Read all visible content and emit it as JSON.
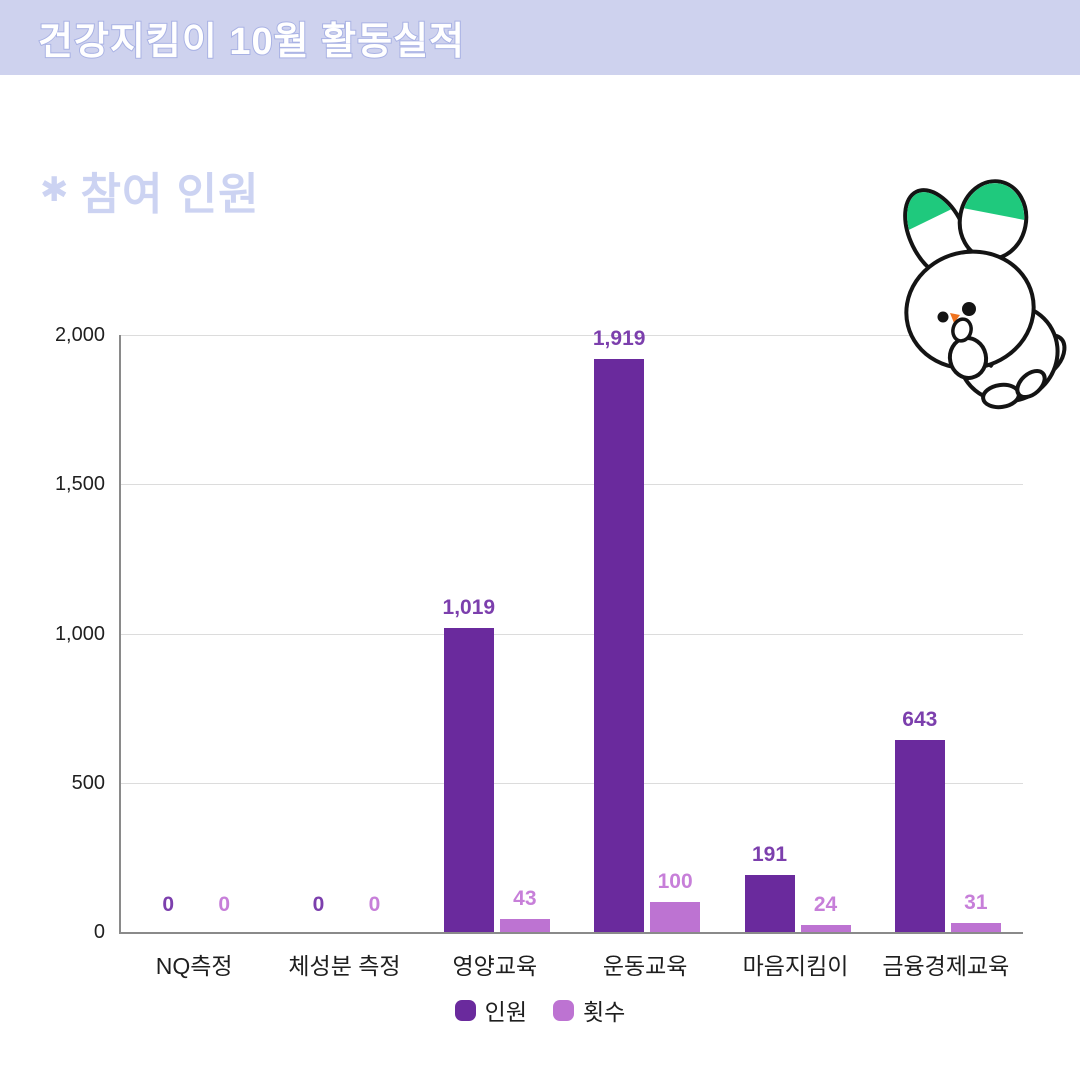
{
  "header": {
    "title": "건강지킴이 10월 활동실적"
  },
  "section": {
    "marker": "✱",
    "title": "참여 인원"
  },
  "icons": {
    "mascot": "rabbit-mascot",
    "mascot_ear_color": "#1fc97d",
    "mascot_nose_color": "#f0731f"
  },
  "theme": {
    "header_bg": "#ced2ee",
    "header_text": "#ffffff",
    "header_text_outline": "#a9b2e4",
    "section_title_color": "#ccd3f2"
  },
  "chart_data": {
    "type": "bar",
    "title": "참여 인원",
    "categories": [
      "NQ측정",
      "체성분 측정",
      "영양교육",
      "운동교육",
      "마음지킴이",
      "금융경제교육"
    ],
    "series": [
      {
        "name": "인원",
        "color": "#6a2a9d",
        "label_color": "#7c3fad",
        "values": [
          0,
          0,
          1019,
          1919,
          191,
          643
        ]
      },
      {
        "name": "횟수",
        "color": "#bd73d2",
        "label_color": "#c77fd9",
        "values": [
          0,
          0,
          43,
          100,
          24,
          31
        ]
      }
    ],
    "ylim": [
      0,
      2000
    ],
    "yticks": [
      0,
      500,
      1000,
      1500,
      2000
    ],
    "grid": true,
    "legend_position": "bottom",
    "colors": {
      "axis": "#8a8a8a",
      "gridline": "#dcdcdc",
      "tick_label": "#1f1f1f",
      "category_label": "#1f1f1f",
      "legend_label": "#1f1f1f"
    }
  }
}
